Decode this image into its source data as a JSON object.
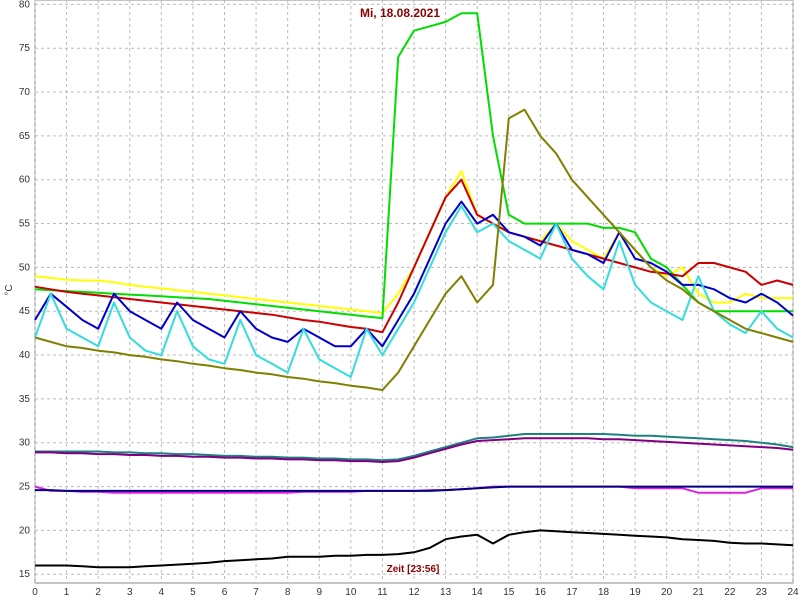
{
  "chart_data": {
    "type": "line",
    "title": "Mi, 18.08.2021",
    "x_label": "Zeit [23:56]",
    "y_label": "°C",
    "x": [
      0,
      0.5,
      1,
      1.5,
      2,
      2.5,
      3,
      3.5,
      4,
      4.5,
      5,
      5.5,
      6,
      6.5,
      7,
      7.5,
      8,
      8.5,
      9,
      9.5,
      10,
      10.5,
      11,
      11.5,
      12,
      12.5,
      13,
      13.5,
      14,
      14.5,
      15,
      15.5,
      16,
      16.5,
      17,
      17.5,
      18,
      18.5,
      19,
      19.5,
      20,
      20.5,
      21,
      21.5,
      22,
      22.5,
      23,
      23.5,
      24
    ],
    "xlim": [
      0,
      24
    ],
    "xticks": [
      0,
      1,
      2,
      3,
      4,
      5,
      6,
      7,
      8,
      9,
      10,
      11,
      12,
      13,
      14,
      15,
      16,
      17,
      18,
      19,
      20,
      21,
      22,
      23,
      24
    ],
    "ylim": [
      14,
      80.5
    ],
    "yticks": [
      15,
      20,
      25,
      30,
      35,
      40,
      45,
      50,
      55,
      60,
      65,
      70,
      75,
      80
    ],
    "grid": true,
    "series": [
      {
        "color": "#ffff00",
        "values": [
          49,
          48.8,
          48.6,
          48.5,
          48.5,
          48.3,
          48,
          47.8,
          47.6,
          47.4,
          47.2,
          47,
          46.8,
          46.6,
          46.4,
          46.2,
          46,
          45.8,
          45.6,
          45.4,
          45.2,
          45,
          44.8,
          47,
          50,
          54,
          58,
          61,
          56,
          55,
          54,
          53.5,
          53,
          55,
          53,
          52,
          51,
          54,
          52,
          50,
          49,
          50,
          47,
          46,
          46,
          47,
          46.5,
          46.5,
          46.5
        ]
      },
      {
        "color": "#00dd00",
        "values": [
          47.5,
          47.4,
          47.3,
          47.2,
          47.1,
          47,
          46.9,
          46.8,
          46.7,
          46.6,
          46.5,
          46.4,
          46.2,
          46,
          45.8,
          45.6,
          45.4,
          45.2,
          45,
          44.8,
          44.6,
          44.4,
          44.2,
          74,
          77,
          77.5,
          78,
          79,
          79,
          65,
          56,
          55,
          55,
          55,
          55,
          55,
          54.5,
          54.5,
          54,
          51,
          50,
          48,
          46,
          45,
          45,
          45,
          45,
          45,
          45
        ]
      },
      {
        "color": "#cc0000",
        "values": [
          47.8,
          47.5,
          47.2,
          47,
          46.8,
          46.6,
          46.4,
          46.2,
          46,
          45.8,
          45.6,
          45.4,
          45.2,
          45,
          44.8,
          44.6,
          44.3,
          44,
          43.8,
          43.5,
          43.2,
          43,
          42.6,
          46,
          50,
          54,
          58,
          60,
          56,
          55,
          54,
          53.5,
          53,
          52.5,
          52,
          51.5,
          51,
          50.5,
          50,
          49.5,
          49.3,
          49,
          50.5,
          50.5,
          50,
          49.5,
          48,
          48.5,
          48
        ]
      },
      {
        "color": "#0000cc",
        "values": [
          44,
          47,
          45.5,
          44,
          43,
          47,
          45,
          44,
          43,
          46,
          44,
          43,
          42,
          45,
          43,
          42,
          41.5,
          43,
          42,
          41,
          41,
          43,
          41,
          44,
          47,
          51,
          55,
          57.5,
          55,
          56,
          54,
          53.5,
          52.5,
          55,
          52,
          51.5,
          50.5,
          54,
          51,
          50.5,
          49.5,
          48,
          48,
          47.5,
          46.5,
          46,
          47,
          46,
          44.5
        ]
      },
      {
        "color": "#33dddd",
        "values": [
          42,
          47,
          43,
          42,
          41,
          46,
          42,
          40.5,
          40,
          45,
          41,
          39.5,
          39,
          44,
          40,
          39,
          38,
          43,
          39.5,
          38.5,
          37.5,
          43,
          40,
          43,
          46,
          50,
          54,
          57,
          54,
          55,
          53,
          52,
          51,
          55,
          51,
          49,
          47.5,
          53,
          48,
          46,
          45,
          44,
          49,
          45,
          43.5,
          42.5,
          45,
          43,
          42
        ]
      },
      {
        "color": "#808000",
        "values": [
          42,
          41.5,
          41,
          40.8,
          40.5,
          40.3,
          40,
          39.8,
          39.5,
          39.3,
          39,
          38.8,
          38.5,
          38.3,
          38,
          37.8,
          37.5,
          37.3,
          37,
          36.8,
          36.5,
          36.3,
          36,
          38,
          41,
          44,
          47,
          49,
          46,
          48,
          67,
          68,
          65,
          63,
          60,
          58,
          56,
          54,
          52,
          50,
          48.5,
          47.5,
          46,
          45,
          44,
          43,
          42.5,
          42,
          41.5
        ]
      },
      {
        "color": "#1f8080",
        "values": [
          29,
          29,
          29,
          29,
          29,
          28.9,
          28.9,
          28.8,
          28.8,
          28.7,
          28.7,
          28.6,
          28.5,
          28.5,
          28.4,
          28.4,
          28.3,
          28.3,
          28.2,
          28.2,
          28.1,
          28.1,
          28,
          28.1,
          28.5,
          29,
          29.5,
          30,
          30.5,
          30.6,
          30.8,
          31,
          31,
          31,
          31,
          31,
          31,
          30.9,
          30.8,
          30.8,
          30.7,
          30.6,
          30.5,
          30.4,
          30.3,
          30.2,
          30,
          29.8,
          29.5
        ]
      },
      {
        "color": "#800080",
        "values": [
          28.9,
          28.9,
          28.8,
          28.8,
          28.7,
          28.7,
          28.6,
          28.6,
          28.5,
          28.5,
          28.4,
          28.4,
          28.3,
          28.3,
          28.2,
          28.2,
          28.1,
          28.1,
          28,
          28,
          27.9,
          27.9,
          27.8,
          27.9,
          28.3,
          28.8,
          29.3,
          29.8,
          30.2,
          30.3,
          30.4,
          30.5,
          30.5,
          30.5,
          30.5,
          30.5,
          30.4,
          30.4,
          30.3,
          30.2,
          30.1,
          30,
          29.9,
          29.8,
          29.7,
          29.6,
          29.5,
          29.4,
          29.2
        ]
      },
      {
        "color": "#dd22dd",
        "values": [
          25,
          24.5,
          24.5,
          24.4,
          24.4,
          24.3,
          24.3,
          24.3,
          24.3,
          24.3,
          24.3,
          24.3,
          24.3,
          24.3,
          24.3,
          24.3,
          24.3,
          24.4,
          24.4,
          24.4,
          24.4,
          24.5,
          24.5,
          24.5,
          24.5,
          24.6,
          24.6,
          24.7,
          24.8,
          25,
          25,
          25,
          25,
          25,
          25,
          25,
          25,
          25,
          24.8,
          24.8,
          24.8,
          24.8,
          24.3,
          24.3,
          24.3,
          24.3,
          24.8,
          24.8,
          24.8
        ]
      },
      {
        "color": "#000080",
        "values": [
          24.6,
          24.6,
          24.5,
          24.5,
          24.5,
          24.5,
          24.5,
          24.5,
          24.5,
          24.5,
          24.5,
          24.5,
          24.5,
          24.5,
          24.5,
          24.5,
          24.5,
          24.5,
          24.5,
          24.5,
          24.5,
          24.5,
          24.5,
          24.5,
          24.5,
          24.5,
          24.6,
          24.7,
          24.8,
          24.9,
          25,
          25,
          25,
          25,
          25,
          25,
          25,
          25,
          25,
          25,
          25,
          25,
          25,
          25,
          25,
          25,
          25,
          25,
          25
        ]
      },
      {
        "color": "#000000",
        "values": [
          16,
          16,
          16,
          15.9,
          15.8,
          15.8,
          15.8,
          15.9,
          16,
          16.1,
          16.2,
          16.3,
          16.5,
          16.6,
          16.7,
          16.8,
          17,
          17,
          17,
          17.1,
          17.1,
          17.2,
          17.2,
          17.3,
          17.5,
          18,
          19,
          19.3,
          19.5,
          18.5,
          19.5,
          19.8,
          20,
          19.9,
          19.8,
          19.7,
          19.6,
          19.5,
          19.4,
          19.3,
          19.2,
          19,
          18.9,
          18.8,
          18.6,
          18.5,
          18.5,
          18.4,
          18.3
        ]
      }
    ]
  }
}
